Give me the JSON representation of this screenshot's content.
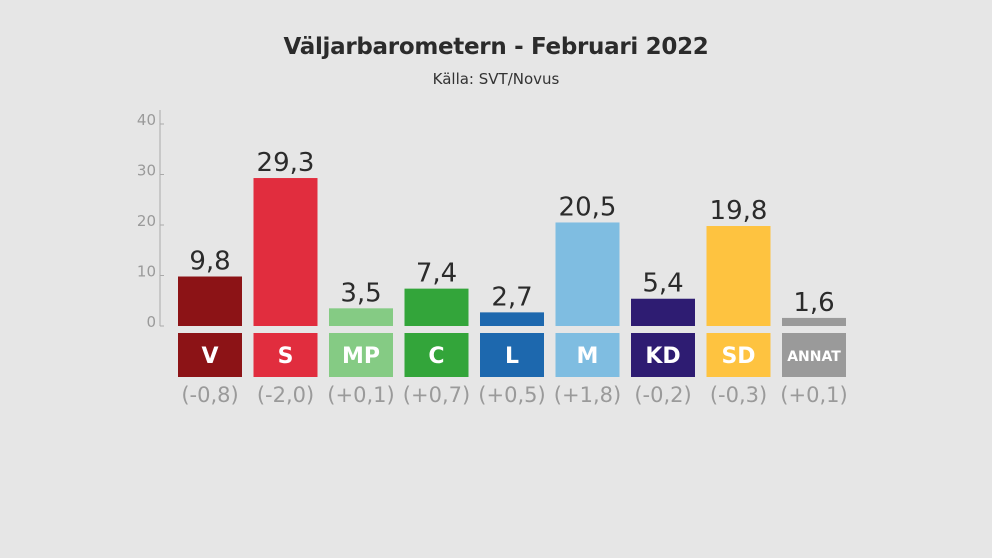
{
  "chart_data": {
    "type": "bar",
    "title": "Väljarbarometern - Februari 2022",
    "subtitle": "Källa: SVT/Novus",
    "categories": [
      "V",
      "S",
      "MP",
      "C",
      "L",
      "M",
      "KD",
      "SD",
      "ANNAT"
    ],
    "values": [
      9.8,
      29.3,
      3.5,
      7.4,
      2.7,
      20.5,
      5.4,
      19.8,
      1.6
    ],
    "value_labels": [
      "9,8",
      "29,3",
      "3,5",
      "7,4",
      "2,7",
      "20,5",
      "5,4",
      "19,8",
      "1,6"
    ],
    "changes": [
      "(-0,8)",
      "(-2,0)",
      "(+0,1)",
      "(+0,7)",
      "(+0,5)",
      "(+1,8)",
      "(-0,2)",
      "(-0,3)",
      "(+0,1)"
    ],
    "colors": [
      "#8c1316",
      "#e12d3e",
      "#85cb84",
      "#33a53a",
      "#1d68ae",
      "#7fbde1",
      "#2e1c72",
      "#fec340",
      "#9a9a9a"
    ],
    "yticks": [
      0,
      10,
      20,
      30,
      40
    ],
    "ylim": [
      0,
      40
    ],
    "grid": false,
    "legend": "none"
  }
}
